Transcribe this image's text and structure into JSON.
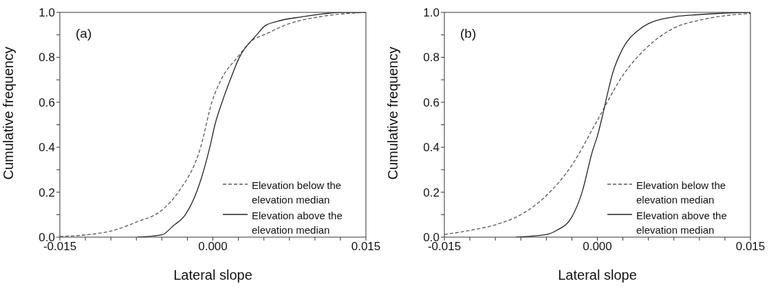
{
  "chart_data": [
    {
      "type": "line",
      "xlabel": "Lateral slope",
      "ylabel": "Cumulative frequency",
      "annotations": [
        "(a)"
      ],
      "legend": "bottom right",
      "grid": false,
      "marker": "none",
      "xlim": [
        -0.015,
        0.015
      ],
      "xticks": [
        {
          "value": -0.015,
          "label": "-0.015"
        },
        {
          "value": -0.0125,
          "label": null
        },
        {
          "value": -0.01,
          "label": null
        },
        {
          "value": -0.0075,
          "label": null
        },
        {
          "value": -0.005,
          "label": null
        },
        {
          "value": -0.0025,
          "label": null
        },
        {
          "value": 0,
          "label": "0.000"
        },
        {
          "value": 0.0025,
          "label": null
        },
        {
          "value": 0.005,
          "label": null
        },
        {
          "value": 0.0075,
          "label": null
        },
        {
          "value": 0.01,
          "label": null
        },
        {
          "value": 0.0125,
          "label": null
        },
        {
          "value": 0.015,
          "label": "0.015"
        }
      ],
      "ylim": [
        0,
        1
      ],
      "yticks": [
        {
          "value": 0,
          "label": "0.0"
        },
        {
          "value": 0.1,
          "label": null
        },
        {
          "value": 0.2,
          "label": "0.2"
        },
        {
          "value": 0.3,
          "label": null
        },
        {
          "value": 0.4,
          "label": "0.4"
        },
        {
          "value": 0.5,
          "label": null
        },
        {
          "value": 0.6,
          "label": "0.6"
        },
        {
          "value": 0.7,
          "label": null
        },
        {
          "value": 0.8,
          "label": "0.8"
        },
        {
          "value": 0.9,
          "label": null
        },
        {
          "value": 1,
          "label": "1.0"
        }
      ],
      "series": [
        {
          "name": "Elevation below the elevation median",
          "color": "#555555",
          "line_style": "dashed",
          "x": [
            -0.015,
            -0.0125,
            -0.01,
            -0.0075,
            -0.005,
            -0.0034,
            -0.0012,
            -0.0001,
            0.0008,
            0.0024,
            0.004,
            0.005,
            0.0075,
            0.0104,
            0.015
          ],
          "values": [
            0.003,
            0.01,
            0.027,
            0.067,
            0.12,
            0.2,
            0.4,
            0.6,
            0.7,
            0.8,
            0.88,
            0.9,
            0.95,
            0.98,
            1.0
          ]
        },
        {
          "name": "Elevation above the elevation median",
          "color": "#222222",
          "line_style": "solid",
          "x": [
            -0.0074,
            -0.005,
            -0.0039,
            -0.0027,
            -0.0016,
            -0.0003,
            0.0002,
            0.0009,
            0.0017,
            0.0026,
            0.0043,
            0.0051,
            0.0063,
            0.0087,
            0.0128,
            0.015
          ],
          "values": [
            0,
            0.01,
            0.05,
            0.1,
            0.2,
            0.4,
            0.5,
            0.6,
            0.7,
            0.8,
            0.9,
            0.94,
            0.96,
            0.98,
            1.0,
            1.0
          ]
        }
      ]
    },
    {
      "type": "line",
      "xlabel": "Lateral slope",
      "ylabel": "Cumulative frequency",
      "annotations": [
        "(b)"
      ],
      "legend": "bottom right",
      "grid": false,
      "marker": "none",
      "xlim": [
        -0.015,
        0.015
      ],
      "xticks": [
        {
          "value": -0.015,
          "label": "-0.015"
        },
        {
          "value": -0.0125,
          "label": null
        },
        {
          "value": -0.01,
          "label": null
        },
        {
          "value": -0.0075,
          "label": null
        },
        {
          "value": -0.005,
          "label": null
        },
        {
          "value": -0.0025,
          "label": null
        },
        {
          "value": 0,
          "label": "0.000"
        },
        {
          "value": 0.0025,
          "label": null
        },
        {
          "value": 0.005,
          "label": null
        },
        {
          "value": 0.0075,
          "label": null
        },
        {
          "value": 0.01,
          "label": null
        },
        {
          "value": 0.0125,
          "label": null
        },
        {
          "value": 0.015,
          "label": "0.015"
        }
      ],
      "ylim": [
        0,
        1
      ],
      "yticks": [
        {
          "value": 0,
          "label": "0.0"
        },
        {
          "value": 0.1,
          "label": null
        },
        {
          "value": 0.2,
          "label": "0.2"
        },
        {
          "value": 0.3,
          "label": null
        },
        {
          "value": 0.4,
          "label": "0.4"
        },
        {
          "value": 0.5,
          "label": null
        },
        {
          "value": 0.6,
          "label": "0.6"
        },
        {
          "value": 0.7,
          "label": null
        },
        {
          "value": 0.8,
          "label": "0.8"
        },
        {
          "value": 0.9,
          "label": null
        },
        {
          "value": 1,
          "label": "1.0"
        }
      ],
      "series": [
        {
          "name": "Elevation below the elevation median",
          "color": "#555555",
          "line_style": "dashed",
          "x": [
            -0.015,
            -0.0125,
            -0.01,
            -0.0075,
            -0.005,
            -0.0025,
            0,
            0.0025,
            0.005,
            0.0075,
            0.01,
            0.0125,
            0.015
          ],
          "values": [
            0.012,
            0.03,
            0.055,
            0.1,
            0.185,
            0.32,
            0.52,
            0.72,
            0.85,
            0.93,
            0.965,
            0.985,
            0.995
          ]
        },
        {
          "name": "Elevation above the elevation median",
          "color": "#222222",
          "line_style": "solid",
          "x": [
            -0.008,
            -0.005,
            -0.004,
            -0.0025,
            -0.0015,
            -0.0005,
            0,
            0.0005,
            0.001,
            0.0015,
            0.0025,
            0.004,
            0.005,
            0.0075,
            0.01,
            0.0125,
            0.015
          ],
          "values": [
            0,
            0.012,
            0.03,
            0.09,
            0.2,
            0.38,
            0.45,
            0.54,
            0.64,
            0.73,
            0.84,
            0.92,
            0.95,
            0.98,
            0.99,
            0.997,
            1.0
          ]
        }
      ]
    }
  ]
}
